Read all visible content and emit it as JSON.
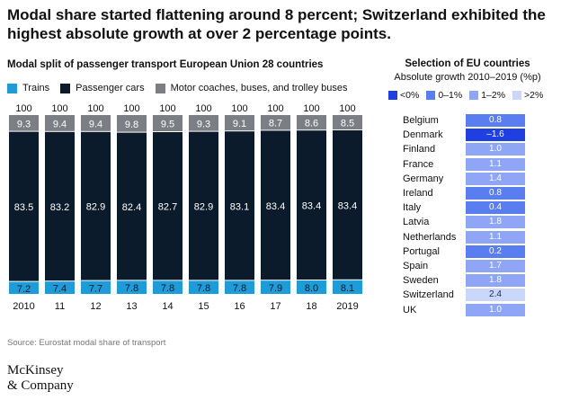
{
  "title": "Modal share started flattening around 8 percent; Switzerland exhibited the highest absolute growth at over 2 percentage points.",
  "colors": {
    "trains": "#1f9bd7",
    "cars": "#0b1b2b",
    "buses": "#7b7f83",
    "neg": "#1f3fe0",
    "c0_1": "#5a7df0",
    "c1_2": "#8ea6f5",
    "c2": "#cbd6fb"
  },
  "chart_data": {
    "type": "bar",
    "stacked": true,
    "title": "Modal split of passenger transport European Union 28 countries",
    "categories": [
      "2010",
      "11",
      "12",
      "13",
      "14",
      "15",
      "16",
      "17",
      "18",
      "2019"
    ],
    "series": [
      {
        "name": "Trains",
        "values": [
          7.2,
          7.4,
          7.7,
          7.8,
          7.8,
          7.8,
          7.8,
          7.9,
          8.0,
          8.1
        ]
      },
      {
        "name": "Passenger cars",
        "values": [
          83.5,
          83.2,
          82.9,
          82.4,
          82.7,
          82.9,
          83.1,
          83.4,
          83.4,
          83.4
        ]
      },
      {
        "name": "Motor coaches, buses, and trolley buses",
        "values": [
          9.3,
          9.4,
          9.4,
          9.8,
          9.5,
          9.3,
          9.1,
          8.7,
          8.6,
          8.5
        ]
      }
    ],
    "totals": [
      100,
      100,
      100,
      100,
      100,
      100,
      100,
      100,
      100,
      100
    ],
    "totals_display": [
      "100",
      "100",
      "100",
      "100",
      "100",
      "100",
      "100",
      "100",
      "100",
      "100"
    ],
    "labels_display": {
      "Trains": [
        "7.2",
        "7.4",
        "7.7",
        "7.8",
        "7.8",
        "7.8",
        "7.8",
        "7.9",
        "8.0",
        "8.1"
      ],
      "Passenger cars": [
        "83.5",
        "83.2",
        "82.9",
        "82.4",
        "82.7",
        "82.9",
        "83.1",
        "83.4",
        "83.4",
        "83.4"
      ],
      "Motor coaches, buses, and trolley buses": [
        "9.3",
        "9.4",
        "9.4",
        "9.8",
        "9.5",
        "9.3",
        "9.1",
        "8.7",
        "8.6",
        "8.5"
      ]
    },
    "ylim": [
      0,
      100
    ]
  },
  "countries": {
    "title": "Selection of EU countries",
    "subtitle": "Absolute growth 2010–2019 (%p)",
    "legend": [
      "<0%",
      "0–1%",
      "1–2%",
      ">2%"
    ],
    "rows": [
      {
        "name": "Belgium",
        "value": 0.8,
        "label": "0.8"
      },
      {
        "name": "Denmark",
        "value": -1.6,
        "label": "–1.6"
      },
      {
        "name": "Finland",
        "value": 1.0,
        "label": "1.0"
      },
      {
        "name": "France",
        "value": 1.1,
        "label": "1.1"
      },
      {
        "name": "Germany",
        "value": 1.4,
        "label": "1.4"
      },
      {
        "name": "Ireland",
        "value": 0.8,
        "label": "0.8"
      },
      {
        "name": "Italy",
        "value": 0.4,
        "label": "0.4"
      },
      {
        "name": "Latvia",
        "value": 1.8,
        "label": "1.8"
      },
      {
        "name": "Netherlands",
        "value": 1.1,
        "label": "1.1"
      },
      {
        "name": "Portugal",
        "value": 0.2,
        "label": "0.2"
      },
      {
        "name": "Spain",
        "value": 1.7,
        "label": "1.7"
      },
      {
        "name": "Sweden",
        "value": 1.8,
        "label": "1.8"
      },
      {
        "name": "Switzerland",
        "value": 2.4,
        "label": "2.4"
      },
      {
        "name": "UK",
        "value": 1.0,
        "label": "1.0"
      }
    ]
  },
  "source": "Source: Eurostat modal share of transport",
  "logo": {
    "line1": "McKinsey",
    "line2": "& Company"
  }
}
